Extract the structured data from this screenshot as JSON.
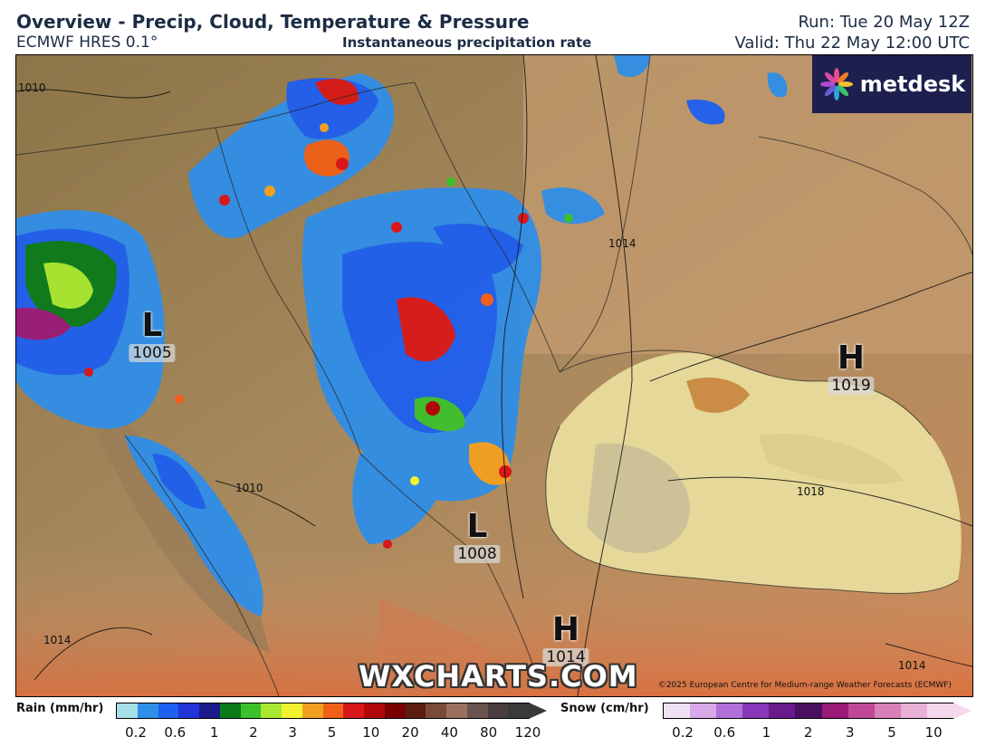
{
  "header": {
    "title": "Overview - Precip, Cloud, Temperature & Pressure",
    "model": "ECMWF HRES 0.1°",
    "field": "Instantaneous precipitation rate",
    "run": "Run: Tue 20 May 12Z",
    "valid": "Valid: Thu 22 May 12:00 UTC"
  },
  "logo": {
    "text": "metdesk",
    "icon": "metdesk-flower-icon"
  },
  "watermark": "WXCHARTS.COM",
  "copyright": "©2025 European Centre for Medium-range Weather Forecasts (ECMWF)",
  "pressure_systems": [
    {
      "type": "L",
      "value": "1005"
    },
    {
      "type": "H",
      "value": "1019"
    },
    {
      "type": "L",
      "value": "1008"
    },
    {
      "type": "H",
      "value": "1014"
    }
  ],
  "isobar_labels": [
    "1010",
    "1014",
    "1010",
    "1014",
    "1018",
    "1014",
    "1014",
    "1014"
  ],
  "legend": {
    "rain": {
      "label": "Rain (mm/hr)",
      "ticks": [
        "0.2",
        "0.6",
        "1",
        "2",
        "3",
        "5",
        "10",
        "20",
        "40",
        "80",
        "120"
      ],
      "colors": [
        "#a6dfe8",
        "#2f8ee8",
        "#1d5ff0",
        "#2233d8",
        "#1a1a8a",
        "#0a7a1a",
        "#3cc02c",
        "#a8e830",
        "#f2f230",
        "#f2a020",
        "#f06018",
        "#d81818",
        "#b00808",
        "#780000",
        "#5a1e10",
        "#7a4a38",
        "#9a7060",
        "#6a5450",
        "#4a3e3e",
        "#3a3a3a"
      ]
    },
    "snow": {
      "label": "Snow (cm/hr)",
      "ticks": [
        "0.2",
        "0.6",
        "1",
        "2",
        "3",
        "5",
        "10"
      ],
      "colors": [
        "#f0e0f4",
        "#d8a8e8",
        "#b070d8",
        "#8838b8",
        "#6a1a8a",
        "#4a1060",
        "#9a1a78",
        "#c04898",
        "#d880b8",
        "#e8b0d4",
        "#f4d8ec"
      ]
    }
  }
}
